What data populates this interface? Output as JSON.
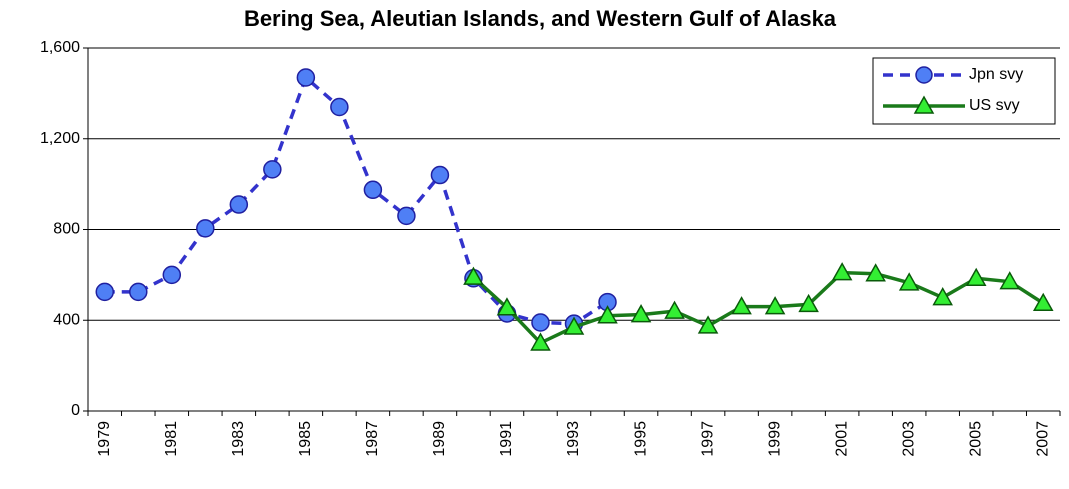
{
  "chart_data": {
    "type": "line",
    "title": "Bering Sea, Aleutian Islands, and Western Gulf of Alaska",
    "categories": [
      "1979",
      null,
      "1981",
      null,
      "1983",
      null,
      "1985",
      null,
      "1987",
      null,
      "1989",
      null,
      "1991",
      null,
      "1993",
      null,
      "1995",
      null,
      "1997",
      null,
      "1999",
      null,
      "2001",
      null,
      "2003",
      null,
      "2005",
      null,
      "2007"
    ],
    "series": [
      {
        "name": "Jpn svy",
        "color": "#3333cc",
        "marker": "circle",
        "marker_color": "#4f7ff5",
        "dashed": true,
        "values": [
          525,
          525,
          600,
          805,
          910,
          1065,
          1470,
          1340,
          975,
          860,
          1040,
          585,
          430,
          390,
          385,
          480,
          null,
          null,
          null,
          null,
          null,
          null,
          null,
          null,
          null,
          null,
          null,
          null,
          null
        ]
      },
      {
        "name": "US svy",
        "color": "#1a7a1a",
        "marker": "triangle",
        "marker_color": "#33ee33",
        "dashed": false,
        "values": [
          null,
          null,
          null,
          null,
          null,
          null,
          null,
          null,
          null,
          null,
          null,
          590,
          455,
          300,
          370,
          420,
          425,
          440,
          375,
          460,
          460,
          470,
          610,
          605,
          565,
          500,
          585,
          570,
          475
        ]
      }
    ],
    "ylim": [
      0,
      1600
    ],
    "yticks": [
      0,
      400,
      800,
      {
        "value": 1200,
        "label": "1,200"
      },
      {
        "value": 1600,
        "label": "1,600"
      }
    ],
    "grid": true,
    "legend": "upper right"
  }
}
